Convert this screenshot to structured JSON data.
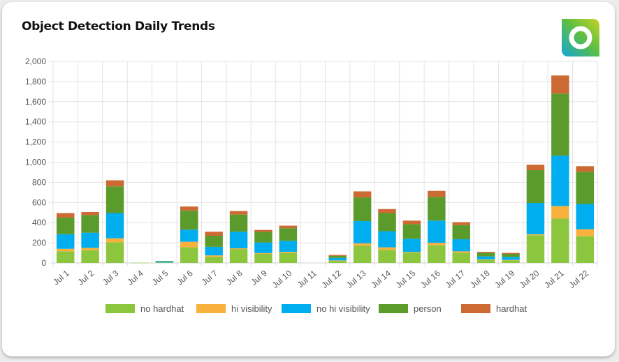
{
  "card": {
    "title": "Object Detection Daily Trends",
    "logo_icon": "gradient-ring-logo"
  },
  "chart_data": {
    "type": "bar",
    "stacked": true,
    "categories": [
      "Jul 1",
      "Jul 2",
      "Jul 3",
      "Jul 4",
      "Jul 5",
      "Jul 6",
      "Jul 7",
      "Jul 8",
      "Jul 9",
      "Jul 10",
      "Jul 11",
      "Jul 12",
      "Jul 13",
      "Jul 14",
      "Jul 15",
      "Jul 16",
      "Jul 17",
      "Jul 18",
      "Jul 19",
      "Jul 20",
      "Jul 21",
      "Jul 22"
    ],
    "series": [
      {
        "name": "no hardhat",
        "color": "#8cc63f",
        "values": [
          115,
          125,
          205,
          2,
          5,
          155,
          60,
          135,
          90,
          100,
          0,
          20,
          170,
          130,
          105,
          175,
          100,
          30,
          25,
          275,
          440,
          265
        ]
      },
      {
        "name": "hi visibility",
        "color": "#f7b13c",
        "values": [
          25,
          25,
          40,
          0,
          0,
          55,
          15,
          10,
          8,
          10,
          0,
          5,
          25,
          25,
          5,
          25,
          15,
          5,
          5,
          10,
          125,
          70
        ]
      },
      {
        "name": "no hi visibility",
        "color": "#00aeef",
        "values": [
          145,
          150,
          250,
          0,
          10,
          120,
          85,
          165,
          105,
          110,
          0,
          25,
          220,
          160,
          130,
          220,
          120,
          30,
          30,
          310,
          500,
          250
        ]
      },
      {
        "name": "person",
        "color": "#5b9b2b",
        "values": [
          165,
          175,
          265,
          0,
          5,
          190,
          110,
          170,
          105,
          125,
          0,
          20,
          235,
          180,
          145,
          235,
          140,
          35,
          30,
          325,
          615,
          320
        ]
      },
      {
        "name": "hardhat",
        "color": "#cd6a34",
        "values": [
          45,
          30,
          60,
          0,
          0,
          40,
          40,
          35,
          20,
          25,
          0,
          10,
          60,
          40,
          35,
          60,
          30,
          10,
          10,
          55,
          180,
          55
        ]
      }
    ],
    "yticks": [
      "0",
      "200",
      "400",
      "600",
      "800",
      "1,000",
      "1,200",
      "1,400",
      "1,600",
      "1,800",
      "2,000"
    ],
    "ylim": [
      0,
      2000
    ],
    "grid": true,
    "legend": "bottom",
    "xlabel": "",
    "ylabel": ""
  }
}
